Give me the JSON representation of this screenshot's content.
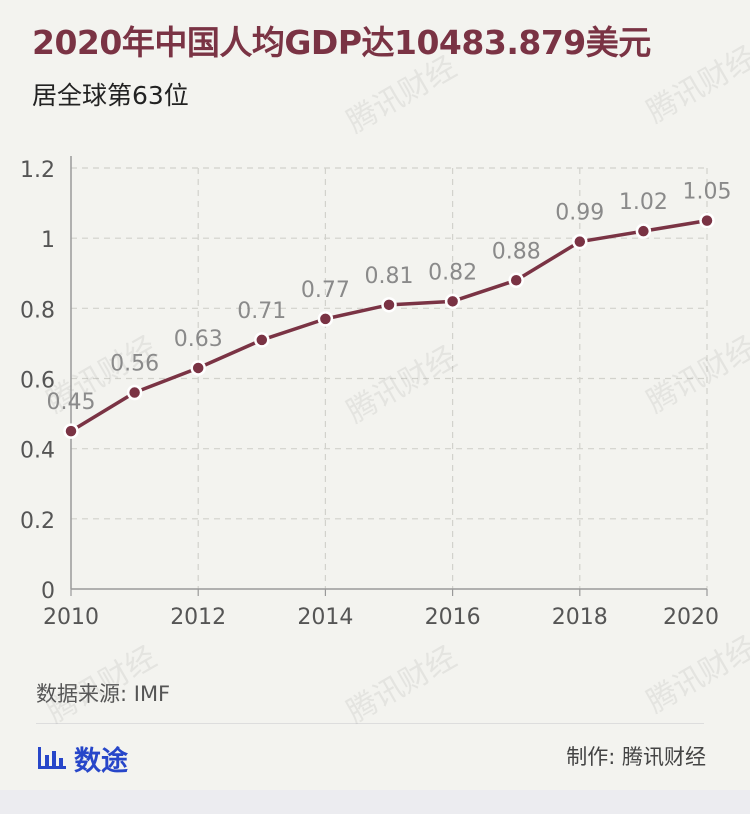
{
  "header": {
    "title": "2020年中国人均GDP达10483.879美元",
    "subtitle": "居全球第63位"
  },
  "chart_data": {
    "type": "line",
    "title": "2020年中国人均GDP达10483.879美元",
    "subtitle": "居全球第63位",
    "xlabel": "",
    "ylabel": "",
    "x": [
      2010,
      2011,
      2012,
      2013,
      2014,
      2015,
      2016,
      2017,
      2018,
      2019,
      2020
    ],
    "x_tick_labels": [
      "2010",
      "2012",
      "2014",
      "2016",
      "2018",
      "2020"
    ],
    "y_tick_labels": [
      "0",
      "0.2",
      "0.4",
      "0.6",
      "0.8",
      "1",
      "1.2"
    ],
    "ylim": [
      0,
      1.2
    ],
    "grid": true,
    "series": [
      {
        "values": [
          0.45,
          0.56,
          0.63,
          0.71,
          0.77,
          0.81,
          0.82,
          0.88,
          0.99,
          1.02,
          1.05
        ],
        "labels": [
          "0.45",
          "0.56",
          "0.63",
          "0.71",
          "0.77",
          "0.81",
          "0.82",
          "0.88",
          "0.99",
          "1.02",
          "1.05"
        ],
        "color": "#7a3344"
      }
    ]
  },
  "footer": {
    "source": "数据来源: IMF",
    "brand": "数途",
    "brand_icon": "bar-chart-icon",
    "brand_color": "#2746c9",
    "credit": "制作: 腾讯财经"
  },
  "watermark": "腾讯财经"
}
